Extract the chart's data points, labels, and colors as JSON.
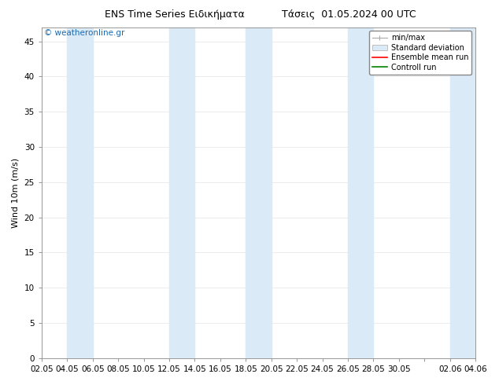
{
  "title_left": "ENS Time Series Ειδικήματα",
  "title_right": "Τάσεις  01.05.2024 00 UTC",
  "ylabel": "Wind 10m (m/s)",
  "ylim": [
    0,
    47
  ],
  "yticks": [
    0,
    5,
    10,
    15,
    20,
    25,
    30,
    35,
    40,
    45
  ],
  "background_color": "#ffffff",
  "plot_bg_color": "#ffffff",
  "shaded_color": "#daeaf7",
  "shaded_alpha": 1.0,
  "watermark": "© weatheronline.gr",
  "watermark_color": "#1a6ab0",
  "legend_items": [
    "min/max",
    "Standard deviation",
    "Ensemble mean run",
    "Controll run"
  ],
  "legend_colors": [
    "#aaaaaa",
    "#daeaf7",
    "#ff0000",
    "#008000"
  ],
  "x_labels": [
    "02.05",
    "04.05",
    "06.05",
    "08.05",
    "10.05",
    "12.05",
    "14.05",
    "16.05",
    "18.05",
    "20.05",
    "22.05",
    "24.05",
    "26.05",
    "28.05",
    "30.05",
    "",
    "02.06",
    "04.06"
  ],
  "x_positions": [
    0,
    2,
    4,
    6,
    8,
    10,
    12,
    14,
    16,
    18,
    20,
    22,
    24,
    26,
    28,
    30,
    32,
    34
  ],
  "shaded_bands": [
    [
      2,
      4
    ],
    [
      10,
      12
    ],
    [
      16,
      18
    ],
    [
      24,
      26
    ],
    [
      32,
      34
    ]
  ],
  "xlim": [
    0,
    34
  ],
  "font_size_title": 9,
  "font_size_axis": 8,
  "font_size_tick": 7.5,
  "font_size_watermark": 7.5,
  "font_size_legend": 7
}
